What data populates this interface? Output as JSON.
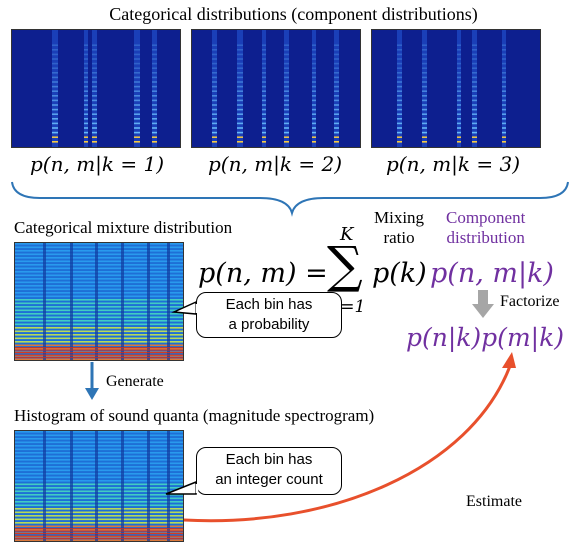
{
  "title": "Categorical distributions (component distributions)",
  "components": [
    {
      "label": "p(n, m|k = 1)"
    },
    {
      "label": "p(n, m|k = 2)"
    },
    {
      "label": "p(n, m|k = 3)"
    }
  ],
  "mixture_heading": "Categorical mixture distribution",
  "histogram_heading": "Histogram of sound quanta (magnitude spectrogram)",
  "formula": {
    "lhs": "p(n, m) =",
    "sum_top": "K",
    "sum_sign": "∑",
    "sum_bottom": "k=1",
    "term_pk": "p(k)",
    "term_component": "p(n, m|k)",
    "mixing_ratio": "Mixing ratio",
    "mixing_line1": "Mixing",
    "mixing_line2": "ratio",
    "component_line1": "Component",
    "component_line2": "distribution",
    "factorize": "Factorize",
    "factorized": "p(n|k)p(m|k)"
  },
  "callouts": {
    "probability_line1": "Each bin has",
    "probability_line2": "a probability",
    "count_line1": "Each bin has",
    "count_line2": "an integer count"
  },
  "generate_label": "Generate",
  "estimate_label": "Estimate",
  "colors": {
    "purple": "#7030a0",
    "generate_arrow": "#2e75b6",
    "estimate_arrow": "#e8502c",
    "factorize_arrow": "#a6a6a6"
  }
}
